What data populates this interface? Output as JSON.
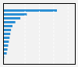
{
  "chart_data": {
    "type": "bar",
    "orientation": "horizontal",
    "categories": [
      null,
      null,
      null,
      null,
      null,
      null,
      null,
      null,
      null,
      null,
      null,
      null,
      null
    ],
    "values": [
      75,
      33,
      24,
      17,
      13,
      11,
      10,
      9,
      8,
      7,
      6,
      5,
      2
    ],
    "colors": [
      "#2b8fd4",
      "#2b8fd4",
      "#2b8fd4",
      "#2b8fd4",
      "#2b8fd4",
      "#2b8fd4",
      "#2b8fd4",
      "#2b8fd4",
      "#2b8fd4",
      "#2b8fd4",
      "#2b8fd4",
      "#2b8fd4",
      "#a8cfe8"
    ],
    "xlim": [
      0,
      100
    ],
    "xticks": [
      30,
      50,
      70,
      90
    ],
    "grid": true,
    "tick_labels": false
  }
}
